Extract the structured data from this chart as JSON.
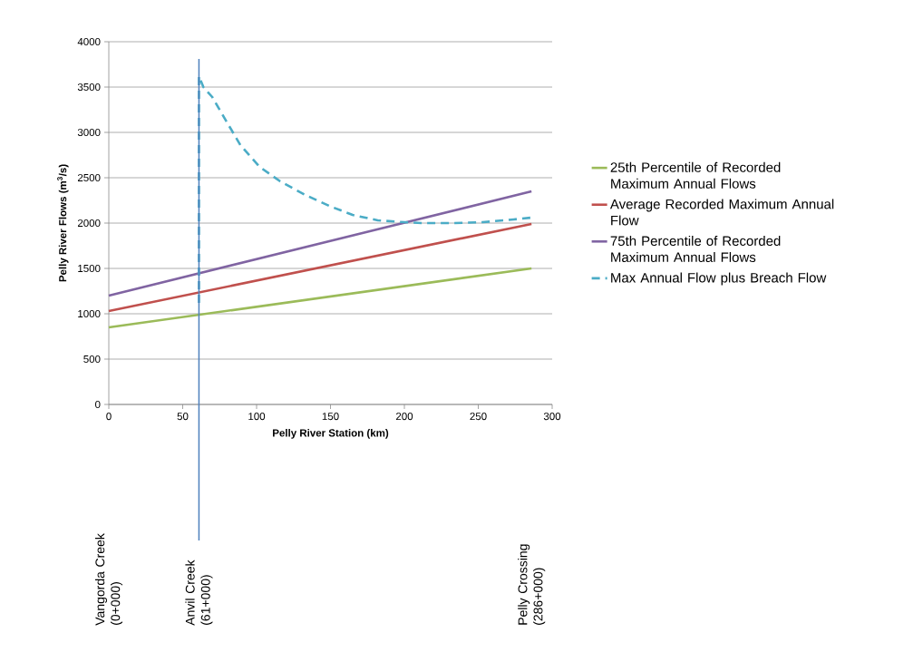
{
  "chart_data": {
    "type": "line",
    "xlabel": "Pelly River Station (km)",
    "ylabel": "Pelly River Flows (m$^{3}$/s)",
    "xlim": [
      0,
      300
    ],
    "ylim": [
      0,
      4000
    ],
    "xticks": [
      0,
      50,
      100,
      150,
      200,
      250,
      300
    ],
    "yticks": [
      0,
      500,
      1000,
      1500,
      2000,
      2500,
      3000,
      3500,
      4000
    ],
    "grid": "y",
    "legend": "right",
    "marker": "none",
    "line_style": "solid",
    "series": [
      {
        "name": "25th Percentile of Recorded Maximum Annual Flows",
        "color": "#9bbb59",
        "x": [
          0,
          286
        ],
        "values": [
          850,
          1500
        ]
      },
      {
        "name": "Average Recorded Maximum Annual Flow",
        "color": "#c0504d",
        "x": [
          0,
          286
        ],
        "values": [
          1030,
          1990
        ]
      },
      {
        "name": "75th Percentile of Recorded Maximum Annual Flows",
        "color": "#8064a2",
        "x": [
          0,
          286
        ],
        "values": [
          1200,
          2350
        ]
      },
      {
        "name": "Max Annual Flow plus Breach Flow",
        "color": "#4bacc6",
        "line_style": "dashed",
        "x": [
          61,
          61,
          64,
          70,
          80,
          89,
          102,
          116,
          133,
          149,
          165,
          182,
          200,
          212,
          233,
          253,
          274,
          286
        ],
        "values": [
          1120,
          3620,
          3500,
          3390,
          3110,
          2860,
          2620,
          2460,
          2310,
          2190,
          2090,
          2030,
          2010,
          2000,
          2000,
          2010,
          2040,
          2060
        ]
      }
    ],
    "ref_lines": [
      {
        "axis": "x",
        "value": 61,
        "label": "Anvil Creek (61+000)",
        "color": "#4f81bd"
      }
    ],
    "annotations": [
      "Vangorda Creek (0+000)",
      "Pelly Crossing (286+000)"
    ]
  }
}
